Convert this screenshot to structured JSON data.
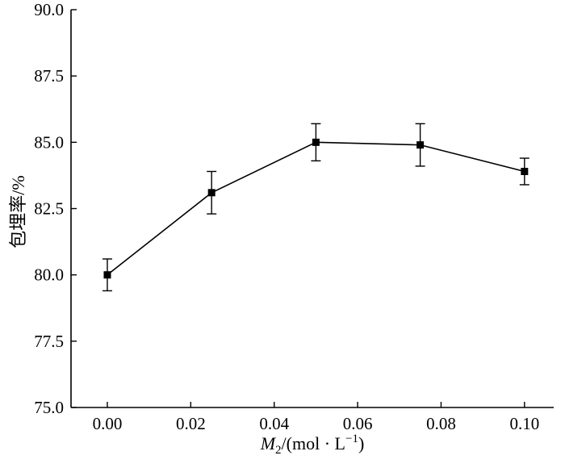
{
  "chart_data": {
    "type": "line",
    "title": "",
    "xlabel": "M2/(mol · L-1)",
    "xlabel_parts": [
      {
        "text": "M",
        "style": "italic"
      },
      {
        "text": "2",
        "style": "sub"
      },
      {
        "text": "/(mol · L",
        "style": "normal"
      },
      {
        "text": "−1",
        "style": "sup"
      },
      {
        "text": ")",
        "style": "normal"
      }
    ],
    "ylabel": "包埋率/%",
    "x": [
      0.0,
      0.025,
      0.05,
      0.075,
      0.1
    ],
    "y": [
      80.0,
      83.1,
      85.0,
      84.9,
      83.9
    ],
    "yerr": [
      0.6,
      0.8,
      0.7,
      0.8,
      0.5
    ],
    "xlim": [
      -0.0087,
      0.107
    ],
    "ylim": [
      75.0,
      90.0
    ],
    "xticks": [
      0.0,
      0.02,
      0.04,
      0.06,
      0.08,
      0.1
    ],
    "xtick_labels": [
      "0.00",
      "0.02",
      "0.04",
      "0.06",
      "0.08",
      "0.10"
    ],
    "yticks": [
      75.0,
      77.5,
      80.0,
      82.5,
      85.0,
      87.5,
      90.0
    ],
    "ytick_labels": [
      "75.0",
      "77.5",
      "80.0",
      "82.5",
      "85.0",
      "87.5",
      "90.0"
    ],
    "marker": "square",
    "marker_size": 9,
    "errorbar_cap_halfwidth": 6,
    "line_color": "#000000",
    "axis_color": "#000000",
    "background_color": "#ffffff",
    "grid": false,
    "legend": null
  }
}
